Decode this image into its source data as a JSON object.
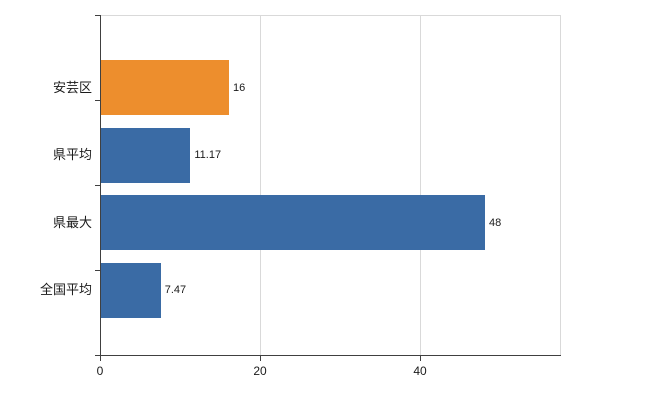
{
  "chart_data": {
    "type": "bar",
    "orientation": "horizontal",
    "title": "",
    "xlabel": "",
    "ylabel": "",
    "categories": [
      "安芸区",
      "県平均",
      "県最大",
      "全国平均"
    ],
    "values": [
      16,
      11.17,
      48,
      7.47
    ],
    "value_labels": [
      "16",
      "11.17",
      "48",
      "7.47"
    ],
    "bar_colors": [
      "#ED8E2D",
      "#3A6BA5",
      "#3A6BA5",
      "#3A6BA5"
    ],
    "highlight_category": "安芸区",
    "x_tick_labels": [
      "0",
      "20",
      "40"
    ],
    "x_tick_values": [
      0,
      20,
      40
    ],
    "xlim": [
      0,
      57.5
    ],
    "grid": true,
    "legend": "none",
    "colors": {
      "grid": "#d9d9d9",
      "axis": "#404040",
      "text": "#1a1a1a",
      "background": "#ffffff"
    }
  }
}
